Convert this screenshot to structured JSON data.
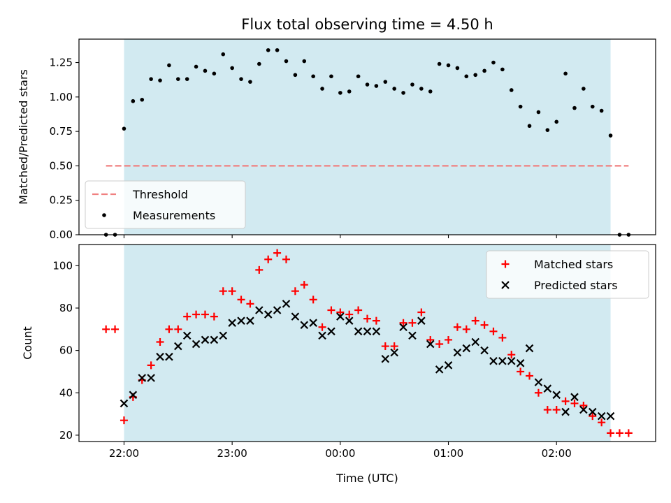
{
  "colors": {
    "observing_window": "#add8e6",
    "threshold": "#f08080",
    "measurements": "#000000",
    "matched": "#ff0000",
    "predicted": "#000000"
  },
  "chart_data": [
    {
      "type": "scatter",
      "title": "Flux total observing time = 4.50 h",
      "xlabel": "",
      "ylabel": "Matched/Predicted stars",
      "x_unit": "time (UTC)",
      "xlim": [
        "21:35",
        "02:55"
      ],
      "ylim": [
        0,
        1.42
      ],
      "yticks": [
        "0.00",
        "0.25",
        "0.50",
        "0.75",
        "1.00",
        "1.25"
      ],
      "xticks": [
        "22:00",
        "23:00",
        "00:00",
        "01:00",
        "02:00"
      ],
      "show_xticklabels": false,
      "observing_window": {
        "start": "22:00",
        "end": "02:30"
      },
      "legend": {
        "placement": "bottom-left",
        "entries": [
          "Threshold",
          "Measurements"
        ]
      },
      "series": [
        {
          "name": "Threshold",
          "kind": "line",
          "style": "dashed",
          "x": [
            "21:50",
            "02:40"
          ],
          "values": [
            0.5,
            0.5
          ]
        },
        {
          "name": "Measurements",
          "kind": "points",
          "x": [
            "21:50",
            "21:55",
            "22:00",
            "22:05",
            "22:10",
            "22:15",
            "22:20",
            "22:25",
            "22:30",
            "22:35",
            "22:40",
            "22:45",
            "22:50",
            "22:55",
            "23:00",
            "23:05",
            "23:10",
            "23:15",
            "23:20",
            "23:25",
            "23:30",
            "23:35",
            "23:40",
            "23:45",
            "23:50",
            "23:55",
            "00:00",
            "00:05",
            "00:10",
            "00:15",
            "00:20",
            "00:25",
            "00:30",
            "00:35",
            "00:40",
            "00:45",
            "00:50",
            "00:55",
            "01:00",
            "01:05",
            "01:10",
            "01:15",
            "01:20",
            "01:25",
            "01:30",
            "01:35",
            "01:40",
            "01:45",
            "01:50",
            "01:55",
            "02:00",
            "02:05",
            "02:10",
            "02:15",
            "02:20",
            "02:25",
            "02:30",
            "02:35",
            "02:40"
          ],
          "values": [
            0.0,
            0.0,
            0.77,
            0.97,
            0.98,
            1.13,
            1.12,
            1.23,
            1.13,
            1.13,
            1.22,
            1.19,
            1.17,
            1.31,
            1.21,
            1.13,
            1.11,
            1.24,
            1.34,
            1.34,
            1.26,
            1.16,
            1.26,
            1.15,
            1.06,
            1.15,
            1.03,
            1.04,
            1.15,
            1.09,
            1.08,
            1.11,
            1.06,
            1.03,
            1.09,
            1.06,
            1.04,
            1.24,
            1.23,
            1.21,
            1.15,
            1.16,
            1.19,
            1.25,
            1.2,
            1.05,
            0.93,
            0.79,
            0.89,
            0.76,
            0.82,
            1.17,
            0.92,
            1.06,
            0.93,
            0.9,
            0.72,
            0.0,
            0.0
          ]
        }
      ]
    },
    {
      "type": "scatter",
      "title": "",
      "xlabel": "Time (UTC)",
      "ylabel": "Count",
      "x_unit": "time (UTC)",
      "xlim": [
        "21:35",
        "02:55"
      ],
      "ylim": [
        17,
        110
      ],
      "yticks": [
        "20",
        "40",
        "60",
        "80",
        "100"
      ],
      "xticks": [
        "22:00",
        "23:00",
        "00:00",
        "01:00",
        "02:00"
      ],
      "show_xticklabels": true,
      "observing_window": {
        "start": "22:00",
        "end": "02:30"
      },
      "legend": {
        "placement": "top-right",
        "entries": [
          "Matched stars",
          "Predicted stars"
        ]
      },
      "series": [
        {
          "name": "Matched stars",
          "kind": "plus",
          "x": [
            "21:50",
            "21:55",
            "22:00",
            "22:05",
            "22:10",
            "22:15",
            "22:20",
            "22:25",
            "22:30",
            "22:35",
            "22:40",
            "22:45",
            "22:50",
            "22:55",
            "23:00",
            "23:05",
            "23:10",
            "23:15",
            "23:20",
            "23:25",
            "23:30",
            "23:35",
            "23:40",
            "23:45",
            "23:50",
            "23:55",
            "00:00",
            "00:05",
            "00:10",
            "00:15",
            "00:20",
            "00:25",
            "00:30",
            "00:35",
            "00:40",
            "00:45",
            "00:50",
            "00:55",
            "01:00",
            "01:05",
            "01:10",
            "01:15",
            "01:20",
            "01:25",
            "01:30",
            "01:35",
            "01:40",
            "01:45",
            "01:50",
            "01:55",
            "02:00",
            "02:05",
            "02:10",
            "02:15",
            "02:20",
            "02:25",
            "02:30",
            "02:35",
            "02:40"
          ],
          "values": [
            70,
            70,
            27,
            38,
            46,
            53,
            64,
            70,
            70,
            76,
            77,
            77,
            76,
            88,
            88,
            84,
            82,
            98,
            103,
            106,
            103,
            88,
            91,
            84,
            71,
            79,
            78,
            77,
            79,
            75,
            74,
            62,
            62,
            73,
            73,
            78,
            65,
            63,
            65,
            71,
            70,
            74,
            72,
            69,
            66,
            58,
            50,
            48,
            40,
            32,
            32,
            36,
            35,
            34,
            29,
            26,
            21,
            21,
            21
          ]
        },
        {
          "name": "Predicted stars",
          "kind": "x",
          "x": [
            "22:00",
            "22:05",
            "22:10",
            "22:15",
            "22:20",
            "22:25",
            "22:30",
            "22:35",
            "22:40",
            "22:45",
            "22:50",
            "22:55",
            "23:00",
            "23:05",
            "23:10",
            "23:15",
            "23:20",
            "23:25",
            "23:30",
            "23:35",
            "23:40",
            "23:45",
            "23:50",
            "23:55",
            "00:00",
            "00:05",
            "00:10",
            "00:15",
            "00:20",
            "00:25",
            "00:30",
            "00:35",
            "00:40",
            "00:45",
            "00:50",
            "00:55",
            "01:00",
            "01:05",
            "01:10",
            "01:15",
            "01:20",
            "01:25",
            "01:30",
            "01:35",
            "01:40",
            "01:45",
            "01:50",
            "01:55",
            "02:00",
            "02:05",
            "02:10",
            "02:15",
            "02:20",
            "02:25",
            "02:30"
          ],
          "values": [
            35,
            39,
            47,
            47,
            57,
            57,
            62,
            67,
            63,
            65,
            65,
            67,
            73,
            74,
            74,
            79,
            77,
            79,
            82,
            76,
            72,
            73,
            67,
            69,
            76,
            74,
            69,
            69,
            69,
            56,
            59,
            71,
            67,
            74,
            63,
            51,
            53,
            59,
            61,
            64,
            60,
            55,
            55,
            55,
            54,
            61,
            45,
            42,
            39,
            31,
            38,
            32,
            31,
            29,
            29
          ]
        }
      ]
    }
  ]
}
